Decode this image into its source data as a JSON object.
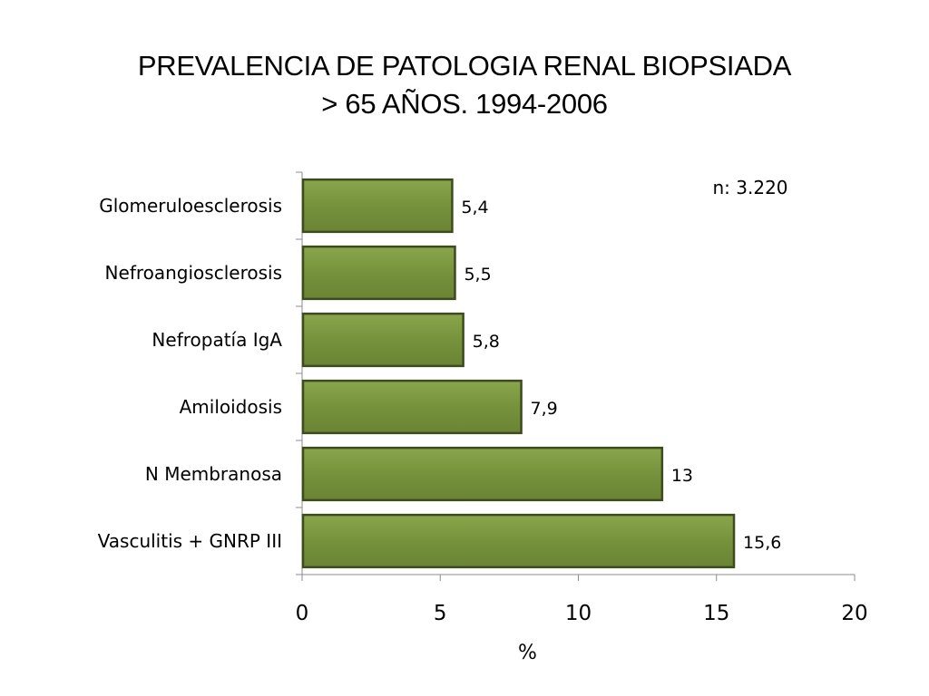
{
  "title": {
    "line1": "PREVALENCIA DE PATOLOGIA RENAL BIOPSIADA",
    "line2": "> 65 AÑOS. 1994-2006"
  },
  "chart_data": {
    "type": "bar",
    "orientation": "horizontal",
    "categories": [
      "Glomeruloesclerosis",
      "Nefroangiosclerosis",
      "Nefropatía IgA",
      "Amiloidosis",
      "N  Membranosa",
      "Vasculitis + GNRP III"
    ],
    "values": [
      5.4,
      5.5,
      5.8,
      7.9,
      13,
      15.6
    ],
    "value_labels": [
      "5,4",
      "5,5",
      "5,8",
      "7,9",
      "13",
      "15,6"
    ],
    "xlabel": "%",
    "ylabel": "",
    "xlim": [
      0,
      20
    ],
    "xticks": [
      0,
      5,
      10,
      15,
      20
    ],
    "grid": false,
    "annotation": "n: 3.220",
    "bar_color": "#76923c",
    "bar_edge_color": "#3d4b1f"
  }
}
